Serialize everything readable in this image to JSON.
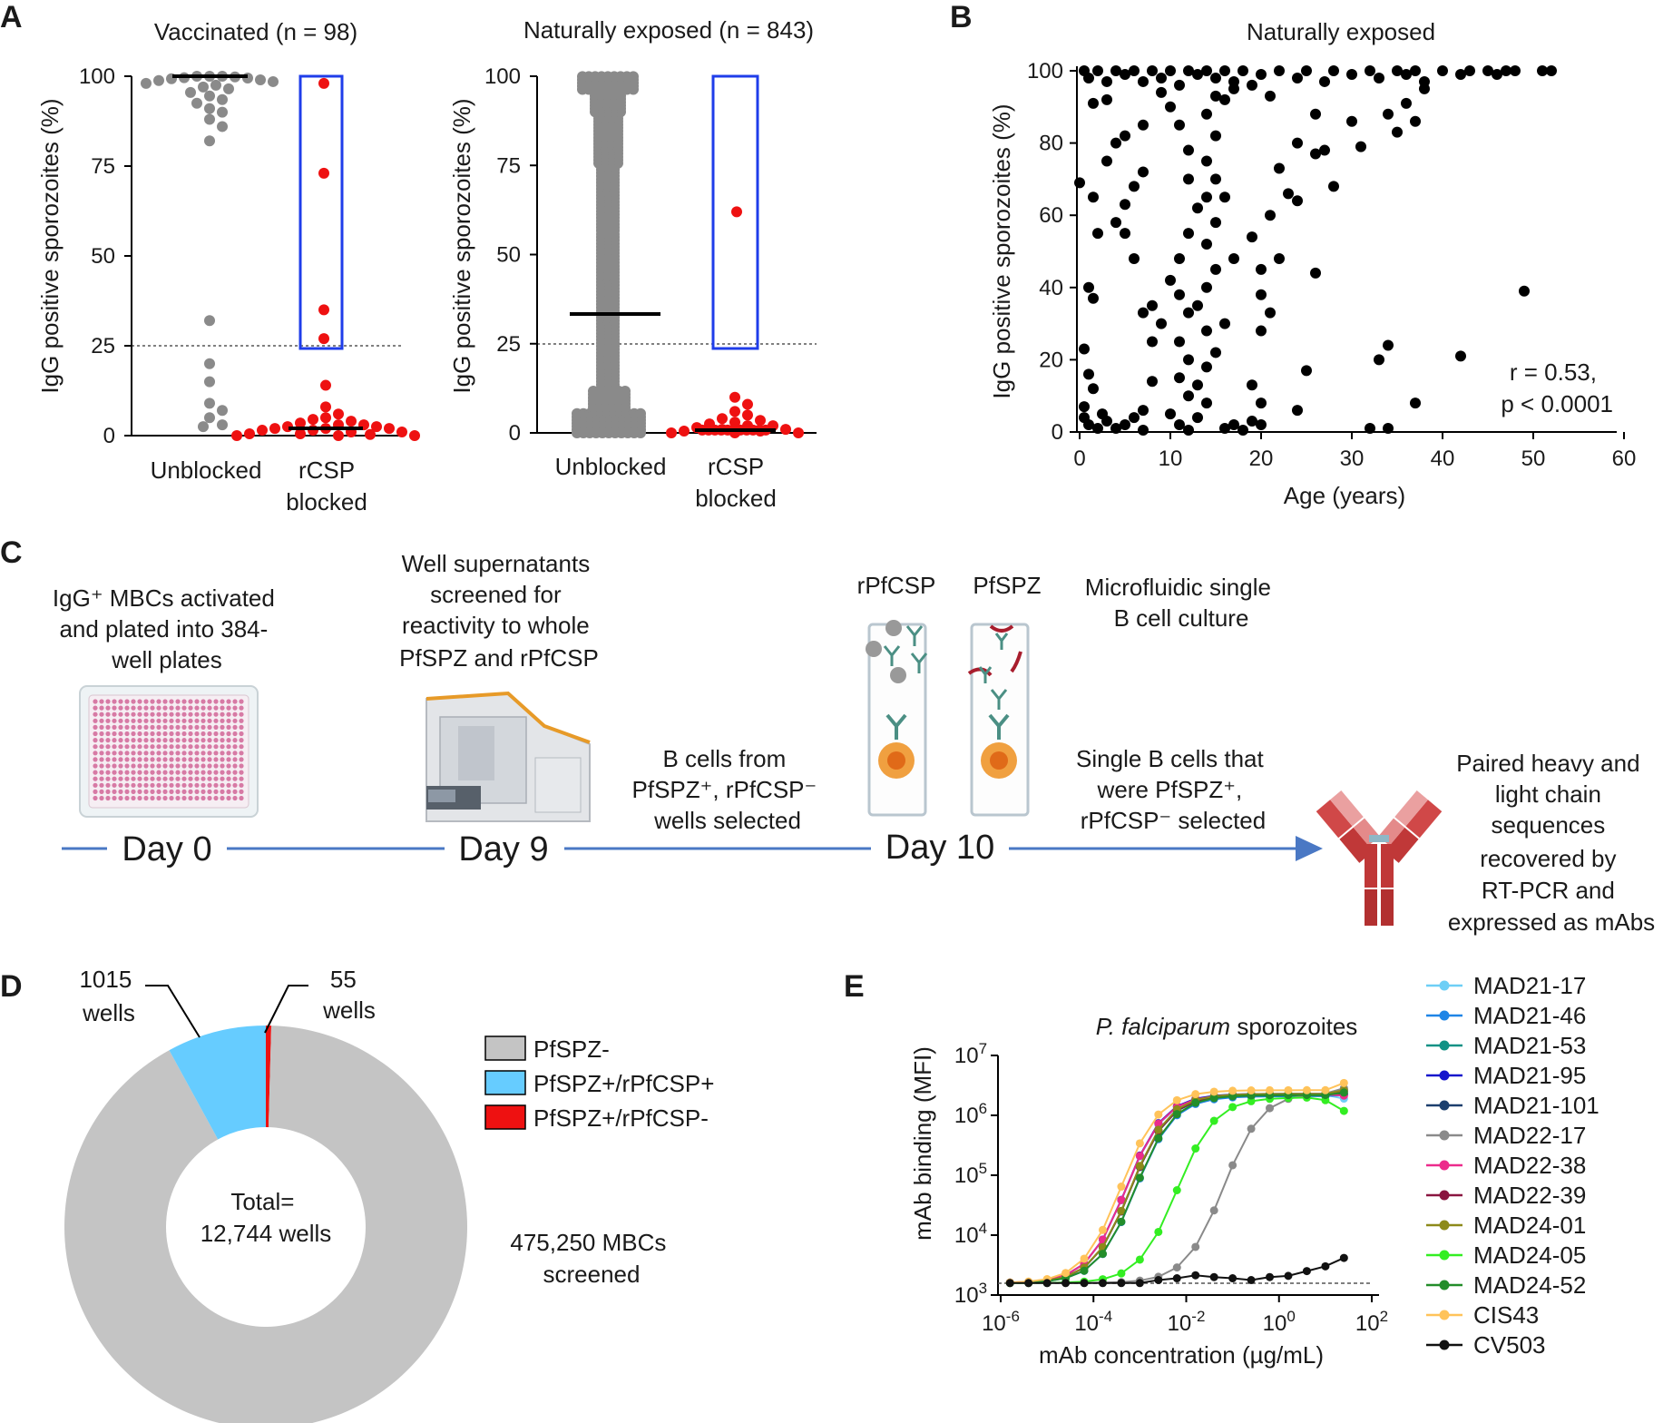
{
  "panel_labels": {
    "a": "A",
    "b": "B",
    "c": "C",
    "d": "D",
    "e": "E"
  },
  "chart_data": [
    {
      "id": "A1",
      "type": "scatter",
      "title": "Vaccinated (n = 98)",
      "ylabel": "IgG positive sporozoites (%)",
      "ylim": [
        0,
        100
      ],
      "yticks": [
        "0",
        "25",
        "50",
        "75",
        "100"
      ],
      "categories": [
        "Unblocked",
        "rCSP blocked"
      ],
      "threshold": 25,
      "series": [
        {
          "name": "Unblocked",
          "median": 99,
          "values": [
            100,
            100,
            100,
            99.8,
            99.6,
            99.5,
            99.3,
            99,
            98.8,
            98.5,
            98,
            97.5,
            97,
            96.5,
            95.5,
            94.5,
            93.5,
            92.5,
            91,
            90,
            88,
            86,
            82,
            32,
            20,
            15,
            9,
            7,
            5,
            3,
            2.5
          ]
        },
        {
          "name": "rCSP blocked",
          "median": 2,
          "highlighted": [
            98,
            73,
            35,
            27
          ],
          "values": [
            14,
            8,
            6,
            5,
            4.5,
            4,
            3.5,
            3,
            3,
            2.5,
            2.5,
            2,
            2,
            2,
            1.5,
            1.5,
            1,
            1,
            0.5,
            0.5,
            0.3,
            0,
            0,
            0
          ]
        }
      ]
    },
    {
      "id": "A2",
      "type": "scatter",
      "title": "Naturally exposed (n = 843)",
      "ylabel": "IgG positive sporozoites (%)",
      "ylim": [
        0,
        100
      ],
      "yticks": [
        "0",
        "25",
        "50",
        "75",
        "100"
      ],
      "categories": [
        "Unblocked",
        "rCSP blocked"
      ],
      "threshold": 25,
      "series": [
        {
          "name": "Unblocked",
          "median": 33.5,
          "values": []
        },
        {
          "name": "rCSP blocked",
          "median": 0.5,
          "highlighted": [
            62
          ],
          "values": [
            10,
            8,
            6,
            5,
            4,
            3.5,
            3,
            2.5,
            2,
            2,
            1.5,
            1,
            1,
            0.5,
            0.5,
            0,
            0,
            0
          ]
        }
      ]
    },
    {
      "id": "B",
      "type": "scatter",
      "title": "Naturally exposed",
      "xlabel": "Age (years)",
      "ylabel": "IgG positive sporozoites (%)",
      "xlim": [
        0,
        60
      ],
      "ylim": [
        0,
        100
      ],
      "xticks": [
        "0",
        "10",
        "20",
        "30",
        "40",
        "50",
        "60"
      ],
      "yticks": [
        "0",
        "20",
        "40",
        "60",
        "80",
        "100"
      ],
      "annotation": [
        "r = 0.53,",
        "p < 0.0001"
      ],
      "points": [
        [
          0.5,
          100
        ],
        [
          1,
          98
        ],
        [
          1.5,
          91
        ],
        [
          2,
          100
        ],
        [
          3,
          97
        ],
        [
          4,
          100
        ],
        [
          5,
          99
        ],
        [
          6,
          100
        ],
        [
          7,
          97
        ],
        [
          8,
          100
        ],
        [
          9,
          98
        ],
        [
          10,
          100
        ],
        [
          11,
          96
        ],
        [
          12,
          100
        ],
        [
          13,
          99
        ],
        [
          14,
          100
        ],
        [
          15,
          98
        ],
        [
          16,
          100
        ],
        [
          17,
          97
        ],
        [
          18,
          100
        ],
        [
          20,
          99
        ],
        [
          22,
          100
        ],
        [
          24,
          98
        ],
        [
          25,
          100
        ],
        [
          27,
          97
        ],
        [
          28,
          100
        ],
        [
          30,
          99
        ],
        [
          32,
          100
        ],
        [
          33,
          98
        ],
        [
          35,
          100
        ],
        [
          36,
          99
        ],
        [
          37,
          100
        ],
        [
          38,
          97
        ],
        [
          40,
          100
        ],
        [
          42,
          99
        ],
        [
          43,
          100
        ],
        [
          45,
          100
        ],
        [
          46,
          99
        ],
        [
          47,
          100
        ],
        [
          48,
          100
        ],
        [
          51,
          100
        ],
        [
          52,
          100
        ],
        [
          38,
          95
        ],
        [
          36,
          91
        ],
        [
          34,
          88
        ],
        [
          37,
          86
        ],
        [
          35,
          83
        ],
        [
          31,
          79
        ],
        [
          27,
          78
        ],
        [
          24,
          80
        ],
        [
          26,
          77
        ],
        [
          30,
          86
        ],
        [
          22,
          73
        ],
        [
          23,
          66
        ],
        [
          24,
          64
        ],
        [
          26,
          88
        ],
        [
          21,
          93
        ],
        [
          19,
          96
        ],
        [
          17,
          95
        ],
        [
          16,
          92
        ],
        [
          0,
          69
        ],
        [
          1.5,
          65
        ],
        [
          2,
          55
        ],
        [
          1,
          40
        ],
        [
          1.5,
          37
        ],
        [
          0.5,
          23
        ],
        [
          1,
          16
        ],
        [
          1.5,
          12
        ],
        [
          0.5,
          7
        ],
        [
          0.5,
          4
        ],
        [
          1,
          2
        ],
        [
          2,
          1
        ],
        [
          2.5,
          5
        ],
        [
          3,
          3
        ],
        [
          4,
          1
        ],
        [
          5,
          2
        ],
        [
          6,
          4
        ],
        [
          7,
          6
        ],
        [
          7,
          0.5
        ],
        [
          8,
          14
        ],
        [
          8,
          25
        ],
        [
          9,
          30
        ],
        [
          7,
          33
        ],
        [
          8,
          35
        ],
        [
          6,
          48
        ],
        [
          5,
          55
        ],
        [
          4,
          58
        ],
        [
          5,
          63
        ],
        [
          6,
          68
        ],
        [
          7,
          72
        ],
        [
          7,
          85
        ],
        [
          5,
          82
        ],
        [
          4,
          80
        ],
        [
          3,
          75
        ],
        [
          3,
          92
        ],
        [
          9,
          94
        ],
        [
          10,
          90
        ],
        [
          11,
          85
        ],
        [
          12,
          78
        ],
        [
          12,
          70
        ],
        [
          13,
          62
        ],
        [
          12,
          55
        ],
        [
          11,
          48
        ],
        [
          10,
          42
        ],
        [
          11,
          38
        ],
        [
          12,
          33
        ],
        [
          11,
          25
        ],
        [
          12,
          20
        ],
        [
          11,
          15
        ],
        [
          12,
          10
        ],
        [
          10,
          5
        ],
        [
          11,
          2
        ],
        [
          12,
          0.5
        ],
        [
          13,
          4
        ],
        [
          14,
          8
        ],
        [
          13,
          13
        ],
        [
          14,
          18
        ],
        [
          15,
          22
        ],
        [
          14,
          28
        ],
        [
          13,
          35
        ],
        [
          14,
          40
        ],
        [
          15,
          45
        ],
        [
          14,
          52
        ],
        [
          15,
          58
        ],
        [
          14,
          65
        ],
        [
          15,
          70
        ],
        [
          14,
          75
        ],
        [
          15,
          82
        ],
        [
          14,
          88
        ],
        [
          15,
          93
        ],
        [
          16,
          1
        ],
        [
          17,
          2
        ],
        [
          18,
          0.5
        ],
        [
          19,
          3
        ],
        [
          20,
          2
        ],
        [
          20,
          8
        ],
        [
          19,
          13
        ],
        [
          20,
          28
        ],
        [
          21,
          33
        ],
        [
          20,
          38
        ],
        [
          20,
          45
        ],
        [
          19,
          54
        ],
        [
          21,
          60
        ],
        [
          17,
          48
        ],
        [
          16,
          30
        ],
        [
          16,
          65
        ],
        [
          22,
          48
        ],
        [
          24,
          6
        ],
        [
          25,
          17
        ],
        [
          26,
          44
        ],
        [
          28,
          68
        ],
        [
          32,
          1
        ],
        [
          33,
          20
        ],
        [
          34,
          24
        ],
        [
          34,
          1
        ],
        [
          37,
          8
        ],
        [
          42,
          21
        ],
        [
          49,
          39
        ]
      ]
    },
    {
      "id": "D",
      "type": "pie",
      "labels": [
        "PfSPZ-",
        "PfSPZ+/rPfCSP+",
        "PfSPZ+/rPfCSP-"
      ],
      "values": [
        11674,
        1015,
        55
      ],
      "colors": [
        "#c4c4c4",
        "#66ccff",
        "#ee1111"
      ],
      "center_text": [
        "Total=",
        "12,744 wells"
      ],
      "callouts": [
        [
          "1015",
          "wells"
        ],
        [
          "55",
          "wells"
        ]
      ],
      "side_text": [
        "475,250 MBCs",
        "screened"
      ]
    },
    {
      "id": "E",
      "type": "line",
      "title_italic": "P. falciparum",
      "title_rest": " sporozoites",
      "xlabel": "mAb concentration (µg/mL)",
      "ylabel": "mAb binding (MFI)",
      "x_scale": "log10",
      "xlim": [
        -6,
        2
      ],
      "ylim_log10": [
        3,
        7
      ],
      "xtick_exponents": [
        "-6",
        "-4",
        "-2",
        "0",
        "2"
      ],
      "ytick_exponents": [
        "3",
        "4",
        "5",
        "6",
        "7"
      ],
      "baseline_log10": 3.2,
      "x_log10": [
        -5.8,
        -5.4,
        -5.0,
        -4.6,
        -4.2,
        -3.8,
        -3.4,
        -3.0,
        -2.6,
        -2.2,
        -1.8,
        -1.4,
        -1.0,
        -0.6,
        -0.2,
        0.2,
        0.6,
        1.0,
        1.4
      ],
      "series": [
        {
          "name": "MAD21-17",
          "color": "#6ecff6",
          "ec50": -3.3,
          "top": 6.34
        },
        {
          "name": "MAD21-46",
          "color": "#1f85e6",
          "ec50": -3.1,
          "top": 6.32
        },
        {
          "name": "MAD21-53",
          "color": "#119185",
          "ec50": -3.2,
          "top": 6.33
        },
        {
          "name": "MAD21-95",
          "color": "#1515cc",
          "ec50": -3.3,
          "top": 6.36
        },
        {
          "name": "MAD21-101",
          "color": "#1c3f6e",
          "ec50": -3.2,
          "top": 6.35
        },
        {
          "name": "MAD22-17",
          "color": "#8a8a8a",
          "ec50": -1.2,
          "top": 6.38
        },
        {
          "name": "MAD22-38",
          "color": "#ec2b8c",
          "ec50": -3.3,
          "top": 6.35
        },
        {
          "name": "MAD22-39",
          "color": "#8a1540",
          "ec50": -3.2,
          "top": 6.34
        },
        {
          "name": "MAD24-01",
          "color": "#8d8a1a",
          "ec50": -3.2,
          "top": 6.36
        },
        {
          "name": "MAD24-05",
          "color": "#33ee22",
          "ec50": -2.2,
          "top": 6.3
        },
        {
          "name": "MAD24-52",
          "color": "#238d2a",
          "ec50": -3.1,
          "top": 6.34
        },
        {
          "name": "CIS43",
          "color": "#ffc35a",
          "ec50": -3.4,
          "top": 6.42
        },
        {
          "name": "CV503",
          "color": "#111111",
          "ec50": null,
          "top": 3.6
        }
      ]
    }
  ],
  "panel_c": {
    "left_text": [
      "IgG⁺ MBCs activated",
      "and plated into 384-",
      "well plates"
    ],
    "mid_text": [
      "Well supernatants",
      "screened for",
      "reactivity to whole",
      "PfSPZ and rPfCSP"
    ],
    "select_text": [
      "B cells from",
      "PfSPZ⁺, rPfCSP⁻",
      "wells selected"
    ],
    "rpfcsp_label": "rPfCSP",
    "pfspz_label": "PfSPZ",
    "micro_text": [
      "Microfluidic single",
      "B cell culture"
    ],
    "single_text": [
      "Single B cells that",
      "were PfSPZ⁺,",
      "rPfCSP⁻ selected"
    ],
    "final_text": [
      "Paired heavy and",
      "light chain",
      "sequences",
      "recovered by",
      "RT-PCR and",
      "expressed as mAbs"
    ],
    "day0": "Day 0",
    "day9": "Day 9",
    "day10": "Day 10"
  }
}
